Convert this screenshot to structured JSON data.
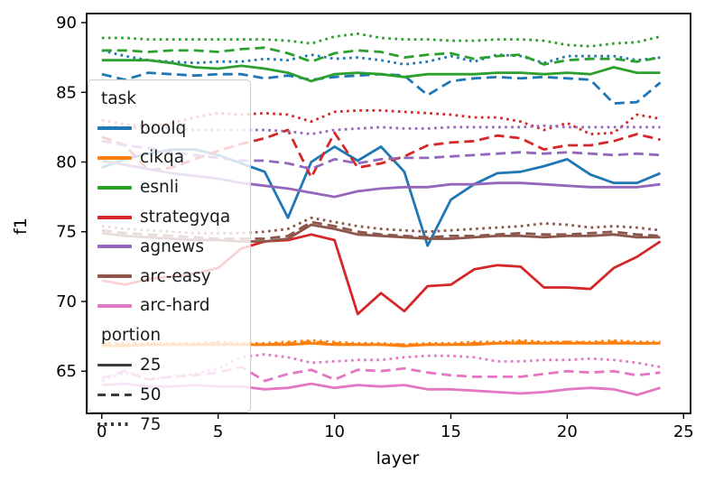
{
  "chart_data": {
    "type": "line",
    "title": "",
    "xlabel": "layer",
    "ylabel": "f1",
    "grid": false,
    "x": [
      0,
      1,
      2,
      3,
      4,
      5,
      6,
      7,
      8,
      9,
      10,
      11,
      12,
      13,
      14,
      15,
      16,
      17,
      18,
      19,
      20,
      21,
      22,
      23,
      24
    ],
    "xlim": [
      -0.65,
      25.3
    ],
    "ylim": [
      61.97,
      90.65
    ],
    "xticks": [
      0,
      5,
      10,
      15,
      20,
      25
    ],
    "yticks": [
      65,
      70,
      75,
      80,
      85,
      90
    ],
    "xtick_labels": [
      "0",
      "5",
      "10",
      "15",
      "20",
      "25"
    ],
    "ytick_labels": [
      "65",
      "70",
      "75",
      "80",
      "85",
      "90"
    ],
    "legend": {
      "hue_title": "task",
      "style_title": "portion",
      "position": "upper-left-inside",
      "handle_color": "#3b3b3b",
      "tasks": [
        {
          "label": "boolq",
          "color": "#1f77b4"
        },
        {
          "label": "cikqa",
          "color": "#ff7f0e"
        },
        {
          "label": "esnli",
          "color": "#2ca02c"
        },
        {
          "label": "strategyqa",
          "color": "#d62728"
        },
        {
          "label": "agnews",
          "color": "#9467bd"
        },
        {
          "label": "arc-easy",
          "color": "#8c564b"
        },
        {
          "label": "arc-hard",
          "color": "#e377c2"
        }
      ],
      "portions": [
        {
          "label": "25",
          "linestyle": "solid"
        },
        {
          "label": "50",
          "linestyle": "dashed"
        },
        {
          "label": "75",
          "linestyle": "dotted"
        }
      ]
    },
    "series": [
      {
        "task": "boolq",
        "portion": "25",
        "color": "#1f77b4",
        "linestyle": "solid",
        "values": [
          79.6,
          80.2,
          80.6,
          80.9,
          80.9,
          80.5,
          79.9,
          79.3,
          76.0,
          80.0,
          81.1,
          80.1,
          81.1,
          79.3,
          74.0,
          77.3,
          78.4,
          79.2,
          79.3,
          79.7,
          80.2,
          79.1,
          78.5,
          78.5,
          79.2
        ]
      },
      {
        "task": "boolq",
        "portion": "50",
        "color": "#1f77b4",
        "linestyle": "dashed",
        "values": [
          86.3,
          85.9,
          86.4,
          86.3,
          86.2,
          86.3,
          86.3,
          86.0,
          86.2,
          85.9,
          86.1,
          86.2,
          86.3,
          86.2,
          84.8,
          85.8,
          86.0,
          86.1,
          86.0,
          86.1,
          86.0,
          85.9,
          84.2,
          84.3,
          85.7
        ]
      },
      {
        "task": "boolq",
        "portion": "75",
        "color": "#1f77b4",
        "linestyle": "dotted",
        "values": [
          88.0,
          87.6,
          87.3,
          87.2,
          87.1,
          87.2,
          87.2,
          87.4,
          87.3,
          87.7,
          87.4,
          87.5,
          87.3,
          87.0,
          87.2,
          87.6,
          87.2,
          87.7,
          87.6,
          87.1,
          87.6,
          87.6,
          87.6,
          87.3,
          87.5
        ]
      },
      {
        "task": "cikqa",
        "portion": "25",
        "color": "#ff7f0e",
        "linestyle": "solid",
        "values": [
          66.8,
          66.8,
          66.9,
          66.9,
          66.9,
          66.9,
          66.9,
          66.9,
          66.9,
          67.0,
          66.9,
          66.9,
          66.9,
          66.8,
          66.9,
          66.9,
          66.9,
          67.0,
          67.0,
          67.0,
          67.0,
          67.0,
          67.0,
          67.0,
          67.0
        ]
      },
      {
        "task": "cikqa",
        "portion": "50",
        "color": "#ff7f0e",
        "linestyle": "dashed",
        "values": [
          66.9,
          66.9,
          66.9,
          66.9,
          66.9,
          67.0,
          66.9,
          66.9,
          67.0,
          67.1,
          67.0,
          66.9,
          66.9,
          66.9,
          66.9,
          66.9,
          67.0,
          67.0,
          67.1,
          67.0,
          67.1,
          67.0,
          67.1,
          67.0,
          67.0
        ]
      },
      {
        "task": "cikqa",
        "portion": "75",
        "color": "#ff7f0e",
        "linestyle": "dotted",
        "values": [
          67.0,
          67.0,
          67.0,
          67.0,
          67.0,
          67.1,
          67.0,
          67.0,
          67.1,
          67.2,
          67.1,
          67.0,
          67.0,
          66.9,
          67.0,
          67.0,
          67.1,
          67.1,
          67.2,
          67.1,
          67.1,
          67.1,
          67.2,
          67.1,
          67.1
        ]
      },
      {
        "task": "esnli",
        "portion": "25",
        "color": "#2ca02c",
        "linestyle": "solid",
        "values": [
          87.3,
          87.3,
          87.3,
          87.1,
          86.8,
          86.7,
          86.9,
          86.7,
          86.4,
          85.8,
          86.3,
          86.4,
          86.3,
          86.1,
          86.3,
          86.3,
          86.3,
          86.4,
          86.4,
          86.3,
          86.4,
          86.3,
          86.8,
          86.4,
          86.4
        ]
      },
      {
        "task": "esnli",
        "portion": "50",
        "color": "#2ca02c",
        "linestyle": "dashed",
        "values": [
          88.0,
          88.0,
          87.9,
          88.0,
          88.0,
          87.9,
          88.1,
          88.2,
          87.8,
          87.2,
          87.8,
          88.0,
          87.9,
          87.5,
          87.7,
          87.8,
          87.4,
          87.6,
          87.7,
          87.0,
          87.3,
          87.4,
          87.4,
          87.2,
          87.5
        ]
      },
      {
        "task": "esnli",
        "portion": "75",
        "color": "#2ca02c",
        "linestyle": "dotted",
        "values": [
          88.9,
          88.9,
          88.8,
          88.8,
          88.8,
          88.8,
          88.8,
          88.8,
          88.7,
          88.5,
          89.0,
          89.2,
          88.9,
          88.8,
          88.8,
          88.7,
          88.7,
          88.8,
          88.8,
          88.7,
          88.4,
          88.3,
          88.5,
          88.6,
          89.0
        ]
      },
      {
        "task": "strategyqa",
        "portion": "25",
        "color": "#d62728",
        "linestyle": "solid",
        "values": [
          71.5,
          71.2,
          71.6,
          71.8,
          72.0,
          72.4,
          73.8,
          74.3,
          74.4,
          74.8,
          74.4,
          69.1,
          70.6,
          69.3,
          71.1,
          71.2,
          72.3,
          72.6,
          72.5,
          71.0,
          71.0,
          70.9,
          72.4,
          73.2,
          74.3
        ]
      },
      {
        "task": "strategyqa",
        "portion": "50",
        "color": "#d62728",
        "linestyle": "dashed",
        "values": [
          81.8,
          81.2,
          79.4,
          79.6,
          80.2,
          80.8,
          81.3,
          81.7,
          82.3,
          78.9,
          82.1,
          79.6,
          79.9,
          80.4,
          81.2,
          81.4,
          81.5,
          81.9,
          81.7,
          80.9,
          81.2,
          81.2,
          81.5,
          82.0,
          81.6
        ]
      },
      {
        "task": "strategyqa",
        "portion": "75",
        "color": "#d62728",
        "linestyle": "dotted",
        "values": [
          83.0,
          82.7,
          82.5,
          82.8,
          83.2,
          83.5,
          83.4,
          83.5,
          83.4,
          82.9,
          83.6,
          83.7,
          83.7,
          83.6,
          83.5,
          83.4,
          83.2,
          83.2,
          82.9,
          82.3,
          82.8,
          82.0,
          82.1,
          83.4,
          83.1
        ]
      },
      {
        "task": "agnews",
        "portion": "25",
        "color": "#9467bd",
        "linestyle": "solid",
        "values": [
          80.1,
          79.8,
          79.5,
          79.2,
          79.0,
          78.8,
          78.5,
          78.3,
          78.1,
          77.8,
          77.5,
          77.9,
          78.1,
          78.2,
          78.2,
          78.4,
          78.4,
          78.5,
          78.5,
          78.4,
          78.3,
          78.2,
          78.2,
          78.2,
          78.4
        ]
      },
      {
        "task": "agnews",
        "portion": "50",
        "color": "#9467bd",
        "linestyle": "dashed",
        "values": [
          81.5,
          81.2,
          81.0,
          80.7,
          80.5,
          80.3,
          80.1,
          80.1,
          79.9,
          79.5,
          80.2,
          79.9,
          80.2,
          80.3,
          80.3,
          80.4,
          80.5,
          80.6,
          80.7,
          80.6,
          80.7,
          80.6,
          80.5,
          80.6,
          80.5
        ]
      },
      {
        "task": "agnews",
        "portion": "75",
        "color": "#9467bd",
        "linestyle": "dotted",
        "values": [
          82.6,
          82.5,
          82.4,
          82.4,
          82.3,
          82.3,
          82.3,
          82.3,
          82.2,
          82.0,
          82.3,
          82.4,
          82.5,
          82.4,
          82.4,
          82.5,
          82.5,
          82.5,
          82.5,
          82.6,
          82.5,
          82.5,
          82.5,
          82.5,
          82.5
        ]
      },
      {
        "task": "arc-easy",
        "portion": "25",
        "color": "#8c564b",
        "linestyle": "solid",
        "values": [
          74.9,
          74.7,
          74.6,
          74.5,
          74.4,
          74.4,
          74.3,
          74.3,
          74.5,
          75.5,
          75.2,
          74.8,
          74.7,
          74.6,
          74.5,
          74.5,
          74.6,
          74.7,
          74.7,
          74.6,
          74.7,
          74.7,
          74.8,
          74.6,
          74.6
        ]
      },
      {
        "task": "arc-easy",
        "portion": "50",
        "color": "#8c564b",
        "linestyle": "dashed",
        "values": [
          75.1,
          74.9,
          74.8,
          74.7,
          74.6,
          74.5,
          74.5,
          74.5,
          74.7,
          75.7,
          75.4,
          75.0,
          74.8,
          74.7,
          74.6,
          74.7,
          74.7,
          74.8,
          74.9,
          74.8,
          74.8,
          74.9,
          75.0,
          74.8,
          74.7
        ]
      },
      {
        "task": "arc-easy",
        "portion": "75",
        "color": "#8c564b",
        "linestyle": "dotted",
        "values": [
          75.4,
          75.2,
          75.1,
          75.0,
          74.9,
          74.9,
          74.9,
          75.0,
          75.2,
          76.0,
          75.7,
          75.4,
          75.2,
          75.1,
          75.0,
          75.1,
          75.2,
          75.3,
          75.4,
          75.6,
          75.5,
          75.3,
          75.4,
          75.3,
          75.1
        ]
      },
      {
        "task": "arc-hard",
        "portion": "25",
        "color": "#e377c2",
        "linestyle": "solid",
        "values": [
          64.0,
          64.1,
          63.9,
          63.9,
          64.0,
          63.9,
          63.9,
          63.7,
          63.8,
          64.1,
          63.8,
          64.0,
          63.9,
          64.0,
          63.7,
          63.7,
          63.6,
          63.5,
          63.4,
          63.5,
          63.7,
          63.8,
          63.7,
          63.3,
          63.8
        ]
      },
      {
        "task": "arc-hard",
        "portion": "50",
        "color": "#e377c2",
        "linestyle": "dashed",
        "values": [
          64.5,
          65.0,
          64.4,
          64.6,
          64.7,
          64.9,
          65.3,
          64.3,
          64.8,
          65.1,
          64.4,
          65.1,
          65.0,
          65.2,
          64.9,
          64.7,
          64.6,
          64.6,
          64.6,
          64.8,
          65.0,
          64.9,
          65.0,
          64.7,
          64.9
        ]
      },
      {
        "task": "arc-hard",
        "portion": "75",
        "color": "#e377c2",
        "linestyle": "dotted",
        "values": [
          64.3,
          64.9,
          64.4,
          64.6,
          64.8,
          65.2,
          66.0,
          66.2,
          66.0,
          65.6,
          65.7,
          65.8,
          65.8,
          66.0,
          66.1,
          66.1,
          66.0,
          65.7,
          65.7,
          65.8,
          65.8,
          65.9,
          65.8,
          65.6,
          65.3
        ]
      }
    ]
  }
}
